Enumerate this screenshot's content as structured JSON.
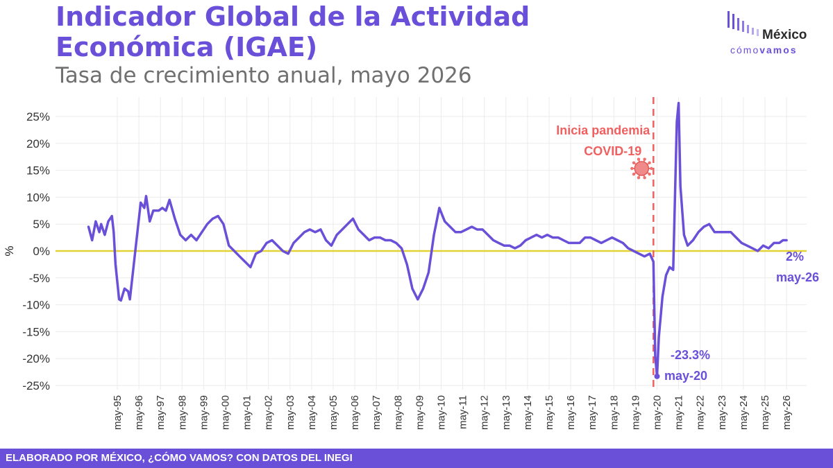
{
  "header": {
    "title": "Indicador Global de la Actividad Económica (IGAE)",
    "subtitle": "Tasa de crecimiento anual, mayo 2026"
  },
  "logo": {
    "word": "México",
    "sub_light": "cómo",
    "sub_bold": "vamos"
  },
  "footer": {
    "text": "ELABORADO POR MÉXICO, ¿CÓMO VAMOS? CON DATOS DEL INEGI"
  },
  "colors": {
    "brand": "#6a4fd8",
    "series": "#6a4fd8",
    "zero_line": "#e3d236",
    "event_line": "#f06060",
    "grid": "#ebebeb"
  },
  "chart_data": {
    "type": "line",
    "title": "",
    "xlabel": "",
    "ylabel": "%",
    "ylim": [
      -25,
      28
    ],
    "grid": true,
    "x_tick_labels": [
      "may-95",
      "may-96",
      "may-97",
      "may-98",
      "may-99",
      "may-00",
      "may-01",
      "may-02",
      "may-03",
      "may-04",
      "may-05",
      "may-06",
      "may-07",
      "may-08",
      "may-09",
      "may-10",
      "may-11",
      "may-12",
      "may-13",
      "may-14",
      "may-15",
      "may-16",
      "may-17",
      "may-18",
      "may-19",
      "may-20",
      "may-21",
      "may-22",
      "may-23",
      "may-24",
      "may-25",
      "may-26"
    ],
    "y_ticks": [
      25,
      20,
      15,
      10,
      5,
      0,
      -5,
      -10,
      -15,
      -20,
      -25
    ],
    "y_tick_labels": [
      "25%",
      "20%",
      "15%",
      "10%",
      "5%",
      "0%",
      "-5%",
      "-10%",
      "-15%",
      "-20%",
      "-25%"
    ],
    "series": [
      {
        "values": [
          [
            "1994-01",
            4.5
          ],
          [
            "1994-03",
            2.0
          ],
          [
            "1994-05",
            5.5
          ],
          [
            "1994-07",
            3.5
          ],
          [
            "1994-08",
            5.0
          ],
          [
            "1994-10",
            3.0
          ],
          [
            "1994-12",
            5.5
          ],
          [
            "1995-02",
            6.5
          ],
          [
            "1995-03",
            3.5
          ],
          [
            "1995-04",
            -2.5
          ],
          [
            "1995-06",
            -9.0
          ],
          [
            "1995-07",
            -9.2
          ],
          [
            "1995-09",
            -7.0
          ],
          [
            "1995-11",
            -7.5
          ],
          [
            "1995-12",
            -9.0
          ],
          [
            "1996-01",
            -6.0
          ],
          [
            "1996-02",
            -3.0
          ],
          [
            "1996-04",
            3.0
          ],
          [
            "1996-06",
            9.0
          ],
          [
            "1996-08",
            8.0
          ],
          [
            "1996-09",
            10.2
          ],
          [
            "1996-11",
            5.5
          ],
          [
            "1997-01",
            7.5
          ],
          [
            "1997-04",
            7.5
          ],
          [
            "1997-06",
            8.0
          ],
          [
            "1997-08",
            7.5
          ],
          [
            "1997-10",
            9.5
          ],
          [
            "1998-01",
            6.0
          ],
          [
            "1998-04",
            3.0
          ],
          [
            "1998-07",
            2.0
          ],
          [
            "1998-10",
            3.0
          ],
          [
            "1999-01",
            2.0
          ],
          [
            "1999-04",
            3.5
          ],
          [
            "1999-07",
            5.0
          ],
          [
            "1999-10",
            6.0
          ],
          [
            "2000-01",
            6.5
          ],
          [
            "2000-04",
            5.0
          ],
          [
            "2000-07",
            1.0
          ],
          [
            "2000-10",
            0.0
          ],
          [
            "2001-01",
            -1.0
          ],
          [
            "2001-04",
            -2.0
          ],
          [
            "2001-07",
            -3.0
          ],
          [
            "2001-10",
            -0.5
          ],
          [
            "2002-01",
            0.0
          ],
          [
            "2002-04",
            1.5
          ],
          [
            "2002-07",
            2.0
          ],
          [
            "2002-10",
            1.0
          ],
          [
            "2003-01",
            0.0
          ],
          [
            "2003-04",
            -0.5
          ],
          [
            "2003-07",
            1.5
          ],
          [
            "2003-10",
            2.5
          ],
          [
            "2004-01",
            3.5
          ],
          [
            "2004-04",
            4.0
          ],
          [
            "2004-07",
            3.5
          ],
          [
            "2004-10",
            4.0
          ],
          [
            "2005-01",
            2.0
          ],
          [
            "2005-04",
            1.0
          ],
          [
            "2005-07",
            3.0
          ],
          [
            "2005-10",
            4.0
          ],
          [
            "2006-01",
            5.0
          ],
          [
            "2006-04",
            6.0
          ],
          [
            "2006-07",
            4.0
          ],
          [
            "2006-10",
            3.0
          ],
          [
            "2007-01",
            2.0
          ],
          [
            "2007-04",
            2.5
          ],
          [
            "2007-07",
            2.5
          ],
          [
            "2007-10",
            2.0
          ],
          [
            "2008-01",
            2.0
          ],
          [
            "2008-04",
            1.5
          ],
          [
            "2008-07",
            0.5
          ],
          [
            "2008-10",
            -2.5
          ],
          [
            "2009-01",
            -7.0
          ],
          [
            "2009-04",
            -9.0
          ],
          [
            "2009-07",
            -7.0
          ],
          [
            "2009-10",
            -4.0
          ],
          [
            "2010-01",
            3.0
          ],
          [
            "2010-04",
            8.0
          ],
          [
            "2010-07",
            5.5
          ],
          [
            "2010-10",
            4.5
          ],
          [
            "2011-01",
            3.5
          ],
          [
            "2011-04",
            3.5
          ],
          [
            "2011-07",
            4.0
          ],
          [
            "2011-10",
            4.5
          ],
          [
            "2012-01",
            4.0
          ],
          [
            "2012-04",
            4.0
          ],
          [
            "2012-07",
            3.0
          ],
          [
            "2012-10",
            2.0
          ],
          [
            "2013-01",
            1.5
          ],
          [
            "2013-04",
            1.0
          ],
          [
            "2013-07",
            1.0
          ],
          [
            "2013-10",
            0.5
          ],
          [
            "2014-01",
            1.0
          ],
          [
            "2014-04",
            2.0
          ],
          [
            "2014-07",
            2.5
          ],
          [
            "2014-10",
            3.0
          ],
          [
            "2015-01",
            2.5
          ],
          [
            "2015-04",
            3.0
          ],
          [
            "2015-07",
            2.5
          ],
          [
            "2015-10",
            2.5
          ],
          [
            "2016-01",
            2.0
          ],
          [
            "2016-04",
            1.5
          ],
          [
            "2016-07",
            1.5
          ],
          [
            "2016-10",
            1.5
          ],
          [
            "2017-01",
            2.5
          ],
          [
            "2017-04",
            2.5
          ],
          [
            "2017-07",
            2.0
          ],
          [
            "2017-10",
            1.5
          ],
          [
            "2018-01",
            2.0
          ],
          [
            "2018-04",
            2.5
          ],
          [
            "2018-07",
            2.0
          ],
          [
            "2018-10",
            1.5
          ],
          [
            "2019-01",
            0.5
          ],
          [
            "2019-04",
            0.0
          ],
          [
            "2019-07",
            -0.5
          ],
          [
            "2019-10",
            -1.0
          ],
          [
            "2020-01",
            -0.5
          ],
          [
            "2020-03",
            -2.0
          ],
          [
            "2020-04",
            -19.5
          ],
          [
            "2020-05",
            -23.3
          ],
          [
            "2020-06",
            -16.0
          ],
          [
            "2020-08",
            -8.5
          ],
          [
            "2020-10",
            -4.5
          ],
          [
            "2020-12",
            -3.0
          ],
          [
            "2021-02",
            -3.5
          ],
          [
            "2021-04",
            24.0
          ],
          [
            "2021-05",
            27.5
          ],
          [
            "2021-06",
            12.0
          ],
          [
            "2021-08",
            3.0
          ],
          [
            "2021-10",
            1.0
          ],
          [
            "2022-01",
            2.0
          ],
          [
            "2022-04",
            3.5
          ],
          [
            "2022-07",
            4.5
          ],
          [
            "2022-10",
            5.0
          ],
          [
            "2023-01",
            3.5
          ],
          [
            "2023-04",
            3.5
          ],
          [
            "2023-07",
            3.5
          ],
          [
            "2023-10",
            3.5
          ],
          [
            "2024-01",
            2.5
          ],
          [
            "2024-04",
            1.5
          ],
          [
            "2024-07",
            1.0
          ],
          [
            "2024-10",
            0.5
          ],
          [
            "2025-01",
            0.0
          ],
          [
            "2025-04",
            1.0
          ],
          [
            "2025-07",
            0.5
          ],
          [
            "2025-10",
            1.5
          ],
          [
            "2026-01",
            1.5
          ],
          [
            "2026-03",
            2.0
          ],
          [
            "2026-05",
            2.0
          ]
        ]
      }
    ],
    "annotations": [
      {
        "id": "covid",
        "date": "2020-03",
        "label_line1": "Inicia pandemia",
        "label_line2": "COVID-19",
        "icon": "virus-icon"
      },
      {
        "id": "min",
        "date": "2020-05",
        "value": -23.3,
        "value_label": "-23.3%",
        "date_label": "may-20"
      },
      {
        "id": "last",
        "date": "2026-05",
        "value": 2.0,
        "value_label": "2%",
        "date_label": "may-26"
      }
    ]
  }
}
